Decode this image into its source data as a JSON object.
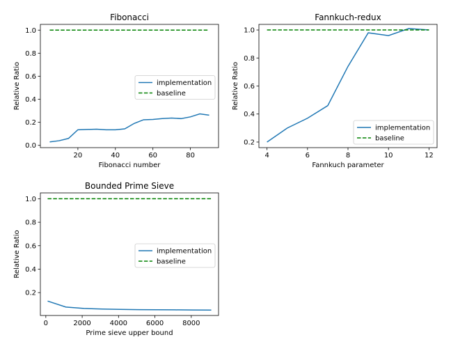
{
  "chart_data": [
    {
      "type": "line",
      "title": "Fibonacci",
      "xlabel": "Fibonacci number",
      "ylabel": "Relative Ratio",
      "xlim": [
        0,
        95
      ],
      "ylim": [
        -0.02,
        1.05
      ],
      "xticks": [
        20,
        40,
        60,
        80
      ],
      "yticks": [
        0.0,
        0.2,
        0.4,
        0.6,
        0.8,
        1.0
      ],
      "ytick_labels": [
        "0.0",
        "0.2",
        "0.4",
        "0.6",
        "0.8",
        "1.0"
      ],
      "legend": "center-right",
      "legend_labels": [
        "implementation",
        "baseline"
      ],
      "series": [
        {
          "name": "implementation",
          "color": "#1f77b4",
          "style": "solid",
          "x": [
            5,
            10,
            15,
            20,
            25,
            30,
            35,
            40,
            45,
            50,
            55,
            60,
            65,
            70,
            75,
            80,
            85,
            90
          ],
          "y": [
            0.03,
            0.04,
            0.06,
            0.135,
            0.138,
            0.14,
            0.135,
            0.135,
            0.143,
            0.19,
            0.222,
            0.225,
            0.232,
            0.237,
            0.232,
            0.247,
            0.273,
            0.262
          ]
        },
        {
          "name": "baseline",
          "color": "#008000",
          "style": "dashed",
          "x": [
            5,
            90
          ],
          "y": [
            1.0,
            1.0
          ]
        }
      ]
    },
    {
      "type": "line",
      "title": "Fannkuch-redux",
      "xlabel": "Fannkuch parameter",
      "ylabel": "Relative Ratio",
      "xlim": [
        3.6,
        12.4
      ],
      "ylim": [
        0.16,
        1.04
      ],
      "xticks": [
        4,
        6,
        8,
        10,
        12
      ],
      "yticks": [
        0.2,
        0.4,
        0.6,
        0.8,
        1.0
      ],
      "ytick_labels": [
        "0.2",
        "0.4",
        "0.6",
        "0.8",
        "1.0"
      ],
      "legend": "lower-right",
      "legend_labels": [
        "implementation",
        "baseline"
      ],
      "series": [
        {
          "name": "implementation",
          "color": "#1f77b4",
          "style": "solid",
          "x": [
            4,
            5,
            6,
            7,
            8,
            9,
            10,
            11,
            12
          ],
          "y": [
            0.2,
            0.3,
            0.37,
            0.46,
            0.74,
            0.98,
            0.96,
            1.01,
            1.0
          ]
        },
        {
          "name": "baseline",
          "color": "#008000",
          "style": "dashed",
          "x": [
            4,
            12
          ],
          "y": [
            1.0,
            1.0
          ]
        }
      ]
    },
    {
      "type": "line",
      "title": "Bounded Prime Sieve",
      "xlabel": "Prime sieve upper bound",
      "ylabel": "Relative Ratio",
      "xlim": [
        -300,
        9500
      ],
      "ylim": [
        0.005,
        1.05
      ],
      "xticks": [
        0,
        2000,
        4000,
        6000,
        8000
      ],
      "yticks": [
        0.2,
        0.4,
        0.6,
        0.8,
        1.0
      ],
      "ytick_labels": [
        "0.2",
        "0.4",
        "0.6",
        "0.8",
        "1.0"
      ],
      "legend": "center-right",
      "legend_labels": [
        "implementation",
        "baseline"
      ],
      "series": [
        {
          "name": "implementation",
          "color": "#1f77b4",
          "style": "solid",
          "x": [
            100,
            1100,
            2100,
            3100,
            4100,
            5100,
            6100,
            7100,
            8100,
            9100
          ],
          "y": [
            0.128,
            0.077,
            0.065,
            0.06,
            0.057,
            0.055,
            0.054,
            0.053,
            0.052,
            0.051
          ]
        },
        {
          "name": "baseline",
          "color": "#008000",
          "style": "dashed",
          "x": [
            100,
            9100
          ],
          "y": [
            1.0,
            1.0
          ]
        }
      ]
    }
  ]
}
